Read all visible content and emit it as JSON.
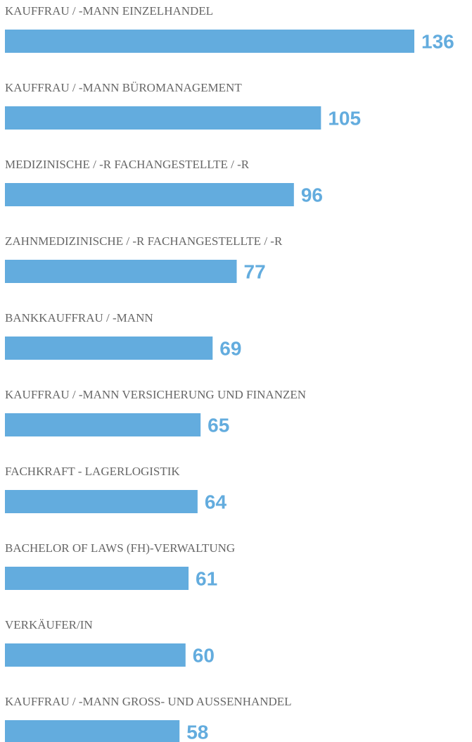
{
  "chart_data": {
    "type": "bar",
    "orientation": "horizontal",
    "categories": [
      "KAUFFRAU / -MANN EINZELHANDEL",
      "KAUFFRAU / -MANN BÜROMANAGEMENT",
      "MEDIZINISCHE / -R FACHANGESTELLTE / -R",
      "ZAHNMEDIZINISCHE / -R FACHANGESTELLTE / -R",
      "BANKKAUFFRAU / -MANN",
      "KAUFFRAU / -MANN VERSICHERUNG UND FINANZEN",
      "FACHKRAFT - LAGERLOGISTIK",
      "BACHELOR OF LAWS (FH)-VERWALTUNG",
      "VERKÄUFER/IN",
      "KAUFFRAU / -MANN GROSS- UND AUSSENHANDEL"
    ],
    "values": [
      136,
      105,
      96,
      77,
      69,
      65,
      64,
      61,
      60,
      58
    ],
    "color": "#63acde"
  }
}
